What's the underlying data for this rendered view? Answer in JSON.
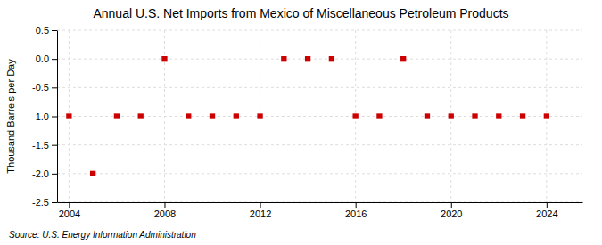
{
  "chart_data": {
    "type": "scatter",
    "title": "Annual U.S. Net Imports from Mexico of Miscellaneous Petroleum Products",
    "ylabel": "Thousand Barrels per Day",
    "source": "Source: U.S. Energy Information Administration",
    "x": [
      2004,
      2005,
      2006,
      2007,
      2008,
      2009,
      2010,
      2011,
      2012,
      2013,
      2014,
      2015,
      2016,
      2017,
      2018,
      2019,
      2020,
      2021,
      2022,
      2023,
      2024
    ],
    "values": [
      -1.0,
      -2.0,
      -1.0,
      -1.0,
      0.0,
      -1.0,
      -1.0,
      -1.0,
      -1.0,
      0.0,
      0.0,
      0.0,
      -1.0,
      -1.0,
      0.0,
      -1.0,
      -1.0,
      -1.0,
      -1.0,
      -1.0,
      -1.0
    ],
    "color": "#cc0000",
    "marker": "square",
    "xlim": [
      2003.5,
      2025.5
    ],
    "ylim": [
      -2.5,
      0.5
    ],
    "xticks": [
      2004,
      2008,
      2012,
      2016,
      2020,
      2024
    ],
    "yticks": [
      0.5,
      {
        "value": 0.0,
        "label": "0.0"
      },
      -0.5,
      {
        "value": -1.0,
        "label": "-1.0"
      },
      -1.5,
      {
        "value": -2.0,
        "label": "-2.0"
      },
      -2.5
    ],
    "grid": true
  }
}
